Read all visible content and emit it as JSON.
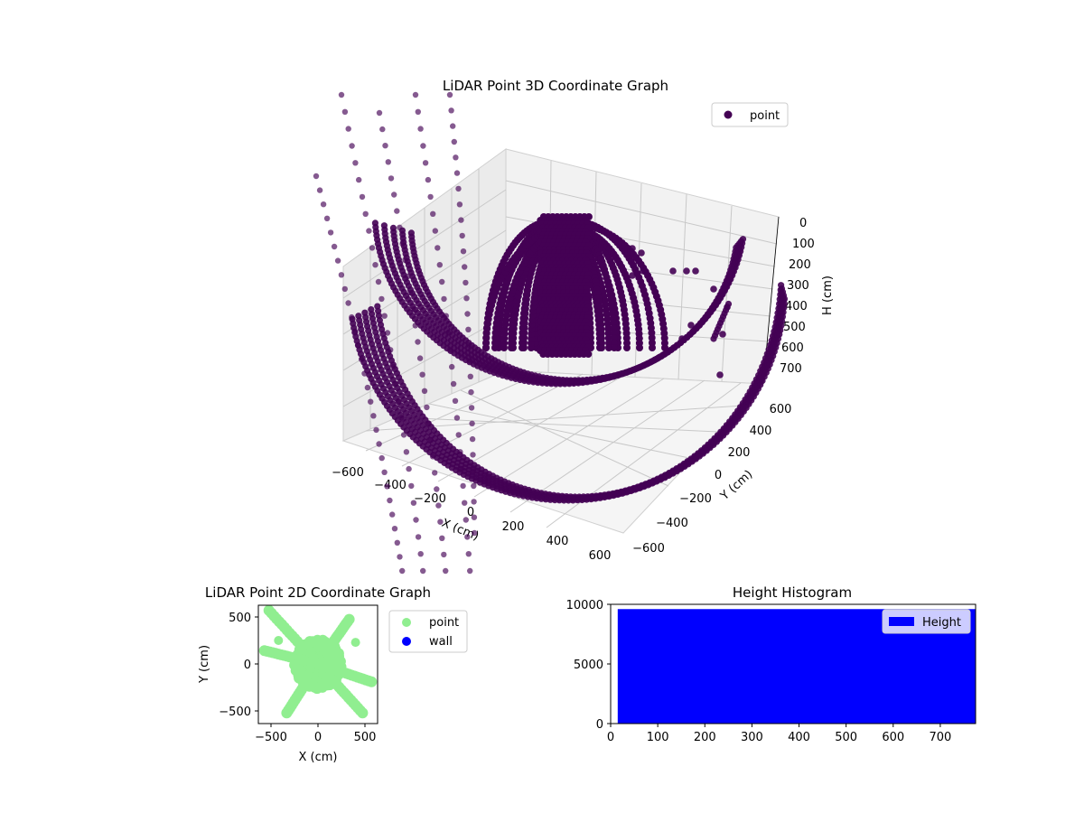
{
  "chart_data": [
    {
      "type": "scatter",
      "projection": "3d",
      "title": "LiDAR Point 3D Coordinate Graph",
      "xlabel": "X (cm)",
      "ylabel": "Y (cm)",
      "zlabel": "H (cm)",
      "xlim": [
        -650,
        650
      ],
      "ylim": [
        -650,
        650
      ],
      "zlim": [
        0,
        750
      ],
      "z_inverted": true,
      "xticks": [
        "−600",
        "−400",
        "−200",
        "0",
        "200",
        "400",
        "600"
      ],
      "yticks": [
        "−600",
        "−400",
        "−200",
        "0",
        "200",
        "400",
        "600"
      ],
      "zticks": [
        "0",
        "100",
        "200",
        "300",
        "400",
        "500",
        "600",
        "700"
      ],
      "grid": true,
      "legend_position": "top-right",
      "series": [
        {
          "name": "point",
          "color": "#440154",
          "description_points": [
            {
              "x": 0,
              "y": 0,
              "h": 750
            },
            {
              "x": -500,
              "y": 500,
              "h": 200
            },
            {
              "x": 500,
              "y": 500,
              "h": 200
            },
            {
              "x": -500,
              "y": -500,
              "h": 200
            },
            {
              "x": 500,
              "y": -500,
              "h": 200
            }
          ]
        }
      ]
    },
    {
      "type": "scatter",
      "title": "LiDAR Point 2D Coordinate Graph",
      "xlabel": "X (cm)",
      "ylabel": "Y (cm)",
      "xlim": [
        -620,
        620
      ],
      "ylim": [
        -620,
        620
      ],
      "xticks": [
        "−500",
        "0",
        "500"
      ],
      "yticks": [
        "−500",
        "0",
        "500"
      ],
      "legend_position": "outside-right",
      "series": [
        {
          "name": "point",
          "color": "#90ee90"
        },
        {
          "name": "wall",
          "color": "#0000ff",
          "points": []
        }
      ]
    },
    {
      "type": "bar",
      "title": "Height Histogram",
      "xlim": [
        0,
        775
      ],
      "ylim": [
        0,
        10000
      ],
      "xticks": [
        "0",
        "100",
        "200",
        "300",
        "400",
        "500",
        "600",
        "700"
      ],
      "yticks": [
        "0",
        "5000",
        "10000"
      ],
      "legend_position": "top-right",
      "series": [
        {
          "name": "Height",
          "color": "#0000ff",
          "bins": [
            {
              "from": 15,
              "to": 775,
              "count": 9600
            }
          ]
        }
      ]
    }
  ]
}
